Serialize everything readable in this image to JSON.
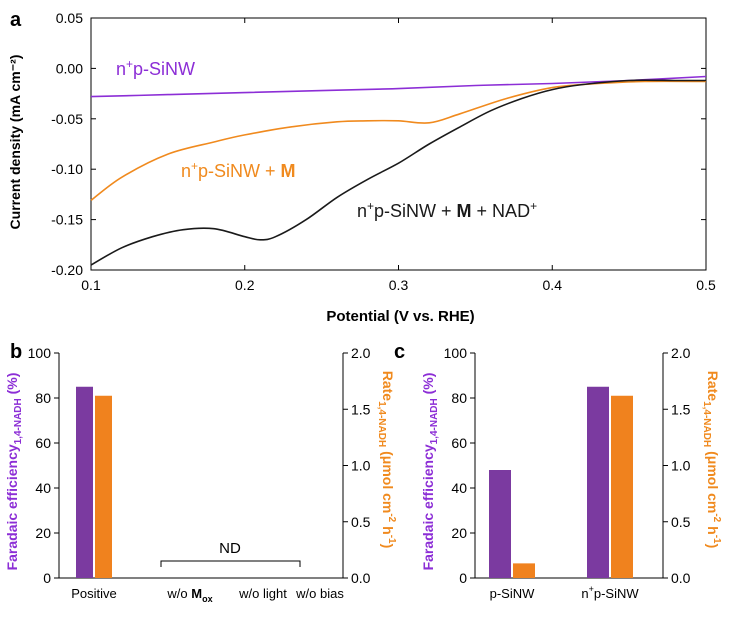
{
  "colors": {
    "purple": "#8c2ed6",
    "orange": "#f08a1e",
    "black": "#1a1a1a",
    "bar_purple": "#7b3aa0",
    "bar_orange": "#f0821e"
  },
  "chart_data": [
    {
      "panel": "a",
      "type": "line",
      "xlabel": "Potential (V vs. RHE)",
      "ylabel": "Current density (mA cm⁻²)",
      "xlim": [
        0.1,
        0.5
      ],
      "ylim": [
        -0.2,
        0.05
      ],
      "xticks": [
        "0.1",
        "0.2",
        "0.3",
        "0.4",
        "0.5"
      ],
      "yticks": [
        "-0.20",
        "-0.15",
        "-0.10",
        "-0.05",
        "0.00",
        "0.05"
      ],
      "series": [
        {
          "name": "n⁺p-SiNW",
          "label_parts": [
            "n",
            "+",
            "p-SiNW"
          ],
          "color": "purple",
          "x": [
            0.1,
            0.15,
            0.2,
            0.25,
            0.3,
            0.35,
            0.4,
            0.45,
            0.5
          ],
          "y": [
            -0.028,
            -0.026,
            -0.024,
            -0.022,
            -0.02,
            -0.017,
            -0.015,
            -0.012,
            -0.008
          ]
        },
        {
          "name": "n⁺p-SiNW + M",
          "label_parts": [
            "n",
            "+",
            "p-SiNW + ",
            "M"
          ],
          "color": "orange",
          "x": [
            0.1,
            0.12,
            0.15,
            0.18,
            0.2,
            0.23,
            0.26,
            0.28,
            0.3,
            0.32,
            0.34,
            0.37,
            0.4,
            0.43,
            0.46,
            0.5
          ],
          "y": [
            -0.131,
            -0.108,
            -0.085,
            -0.073,
            -0.066,
            -0.058,
            -0.053,
            -0.052,
            -0.052,
            -0.054,
            -0.045,
            -0.03,
            -0.019,
            -0.015,
            -0.013,
            -0.013
          ]
        },
        {
          "name": "n⁺p-SiNW + M + NAD⁺",
          "label_parts": [
            "n",
            "+",
            "p-SiNW + ",
            "M",
            " + NAD",
            "+"
          ],
          "color": "black",
          "x": [
            0.1,
            0.12,
            0.14,
            0.16,
            0.18,
            0.2,
            0.21,
            0.22,
            0.24,
            0.26,
            0.28,
            0.3,
            0.32,
            0.34,
            0.36,
            0.38,
            0.4,
            0.42,
            0.45,
            0.48,
            0.5
          ],
          "y": [
            -0.195,
            -0.178,
            -0.167,
            -0.16,
            -0.159,
            -0.167,
            -0.17,
            -0.167,
            -0.15,
            -0.128,
            -0.11,
            -0.094,
            -0.075,
            -0.058,
            -0.042,
            -0.03,
            -0.021,
            -0.016,
            -0.012,
            -0.012,
            -0.012
          ]
        }
      ]
    },
    {
      "panel": "b",
      "type": "bar",
      "categories": [
        "Positive",
        "w/o M_ox",
        "w/o light",
        "w/o bias"
      ],
      "category_labels": [
        {
          "parts": [
            "Positive"
          ]
        },
        {
          "parts": [
            "w/o ",
            "M",
            "ox"
          ]
        },
        {
          "parts": [
            "w/o light"
          ]
        },
        {
          "parts": [
            "w/o bias"
          ]
        }
      ],
      "y1label_parts": [
        "Faradaic efficiency",
        "1,4-NADH",
        " (%)"
      ],
      "y2label_parts": [
        "Rate",
        "1,4-NADH",
        " (μmol cm",
        "-2",
        " h",
        "-1",
        ")"
      ],
      "y1lim": [
        0,
        100
      ],
      "y2lim": [
        0,
        2.0
      ],
      "y1ticks": [
        "0",
        "20",
        "40",
        "60",
        "80",
        "100"
      ],
      "y2ticks": [
        "0.0",
        "0.5",
        "1.0",
        "1.5",
        "2.0"
      ],
      "series": [
        {
          "name": "Faradaic efficiency (%)",
          "axis": "left",
          "color": "bar_purple",
          "values": [
            85,
            null,
            null,
            null
          ]
        },
        {
          "name": "Rate (μmol cm-2 h-1)",
          "axis": "right",
          "color": "bar_orange",
          "values": [
            1.62,
            null,
            null,
            null
          ]
        }
      ],
      "annotation": "ND"
    },
    {
      "panel": "c",
      "type": "bar",
      "categories": [
        "p-SiNW",
        "n⁺p-SiNW"
      ],
      "category_labels": [
        {
          "parts": [
            "p-SiNW"
          ]
        },
        {
          "parts": [
            "n",
            "+",
            "p-SiNW"
          ]
        }
      ],
      "y1label_parts": [
        "Faradaic efficiency",
        "1,4-NADH",
        " (%)"
      ],
      "y2label_parts": [
        "Rate",
        "1,4-NADH",
        " (μmol cm",
        "-2",
        " h",
        "-1",
        ")"
      ],
      "y1lim": [
        0,
        100
      ],
      "y2lim": [
        0,
        2.0
      ],
      "y1ticks": [
        "0",
        "20",
        "40",
        "60",
        "80",
        "100"
      ],
      "y2ticks": [
        "0.0",
        "0.5",
        "1.0",
        "1.5",
        "2.0"
      ],
      "series": [
        {
          "name": "Faradaic efficiency (%)",
          "axis": "left",
          "color": "bar_purple",
          "values": [
            48,
            85
          ]
        },
        {
          "name": "Rate (μmol cm-2 h-1)",
          "axis": "right",
          "color": "bar_orange",
          "values": [
            0.13,
            1.62
          ]
        }
      ]
    }
  ],
  "panel_labels": {
    "a": "a",
    "b": "b",
    "c": "c"
  }
}
